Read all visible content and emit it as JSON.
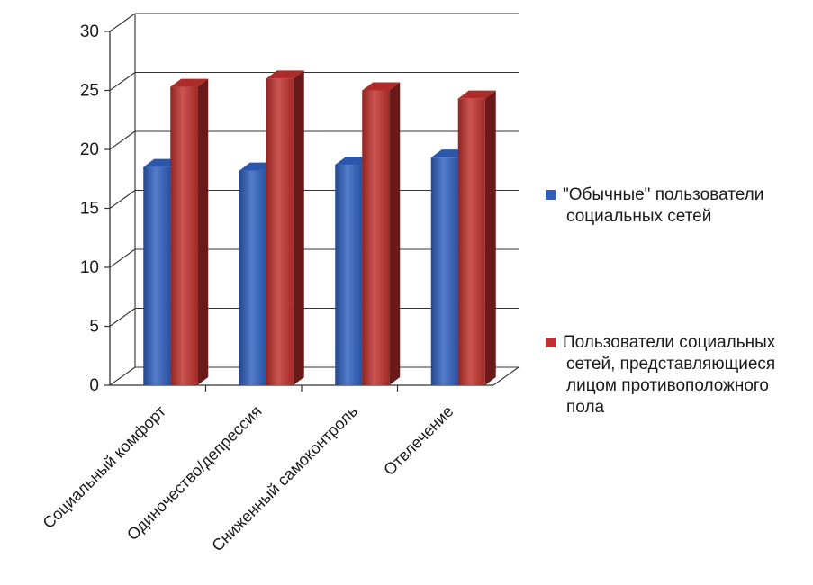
{
  "chart_data": {
    "type": "bar",
    "title": "",
    "xlabel": "",
    "ylabel": "",
    "categories": [
      "Социальный комфорт",
      "Одиночество/депрессия",
      "Сниженный самоконтроль",
      "Отвлечение"
    ],
    "series": [
      {
        "name": "\"Обычные\" пользователи социальных сетей",
        "legend_lines": [
          "\"Обычные\" пользователи",
          "социальных сетей"
        ],
        "color": "#2f5fbf",
        "values": [
          18.5,
          18.2,
          18.7,
          19.3
        ]
      },
      {
        "name": "Пользователи социальных сетей, представляющиеся лицом противоположного пола",
        "legend_lines": [
          "Пользователи социальных",
          "сетей, представляющиеся",
          "лицом противоположного",
          "пола"
        ],
        "color": "#c0302c",
        "values": [
          25.3,
          26.0,
          25.0,
          24.3
        ]
      }
    ],
    "yticks": [
      "0",
      "5",
      "10",
      "15",
      "20",
      "25",
      "30"
    ],
    "ylim": [
      0,
      30
    ],
    "grid": true,
    "legend_position": "right",
    "style": "3d-clustered-column"
  }
}
